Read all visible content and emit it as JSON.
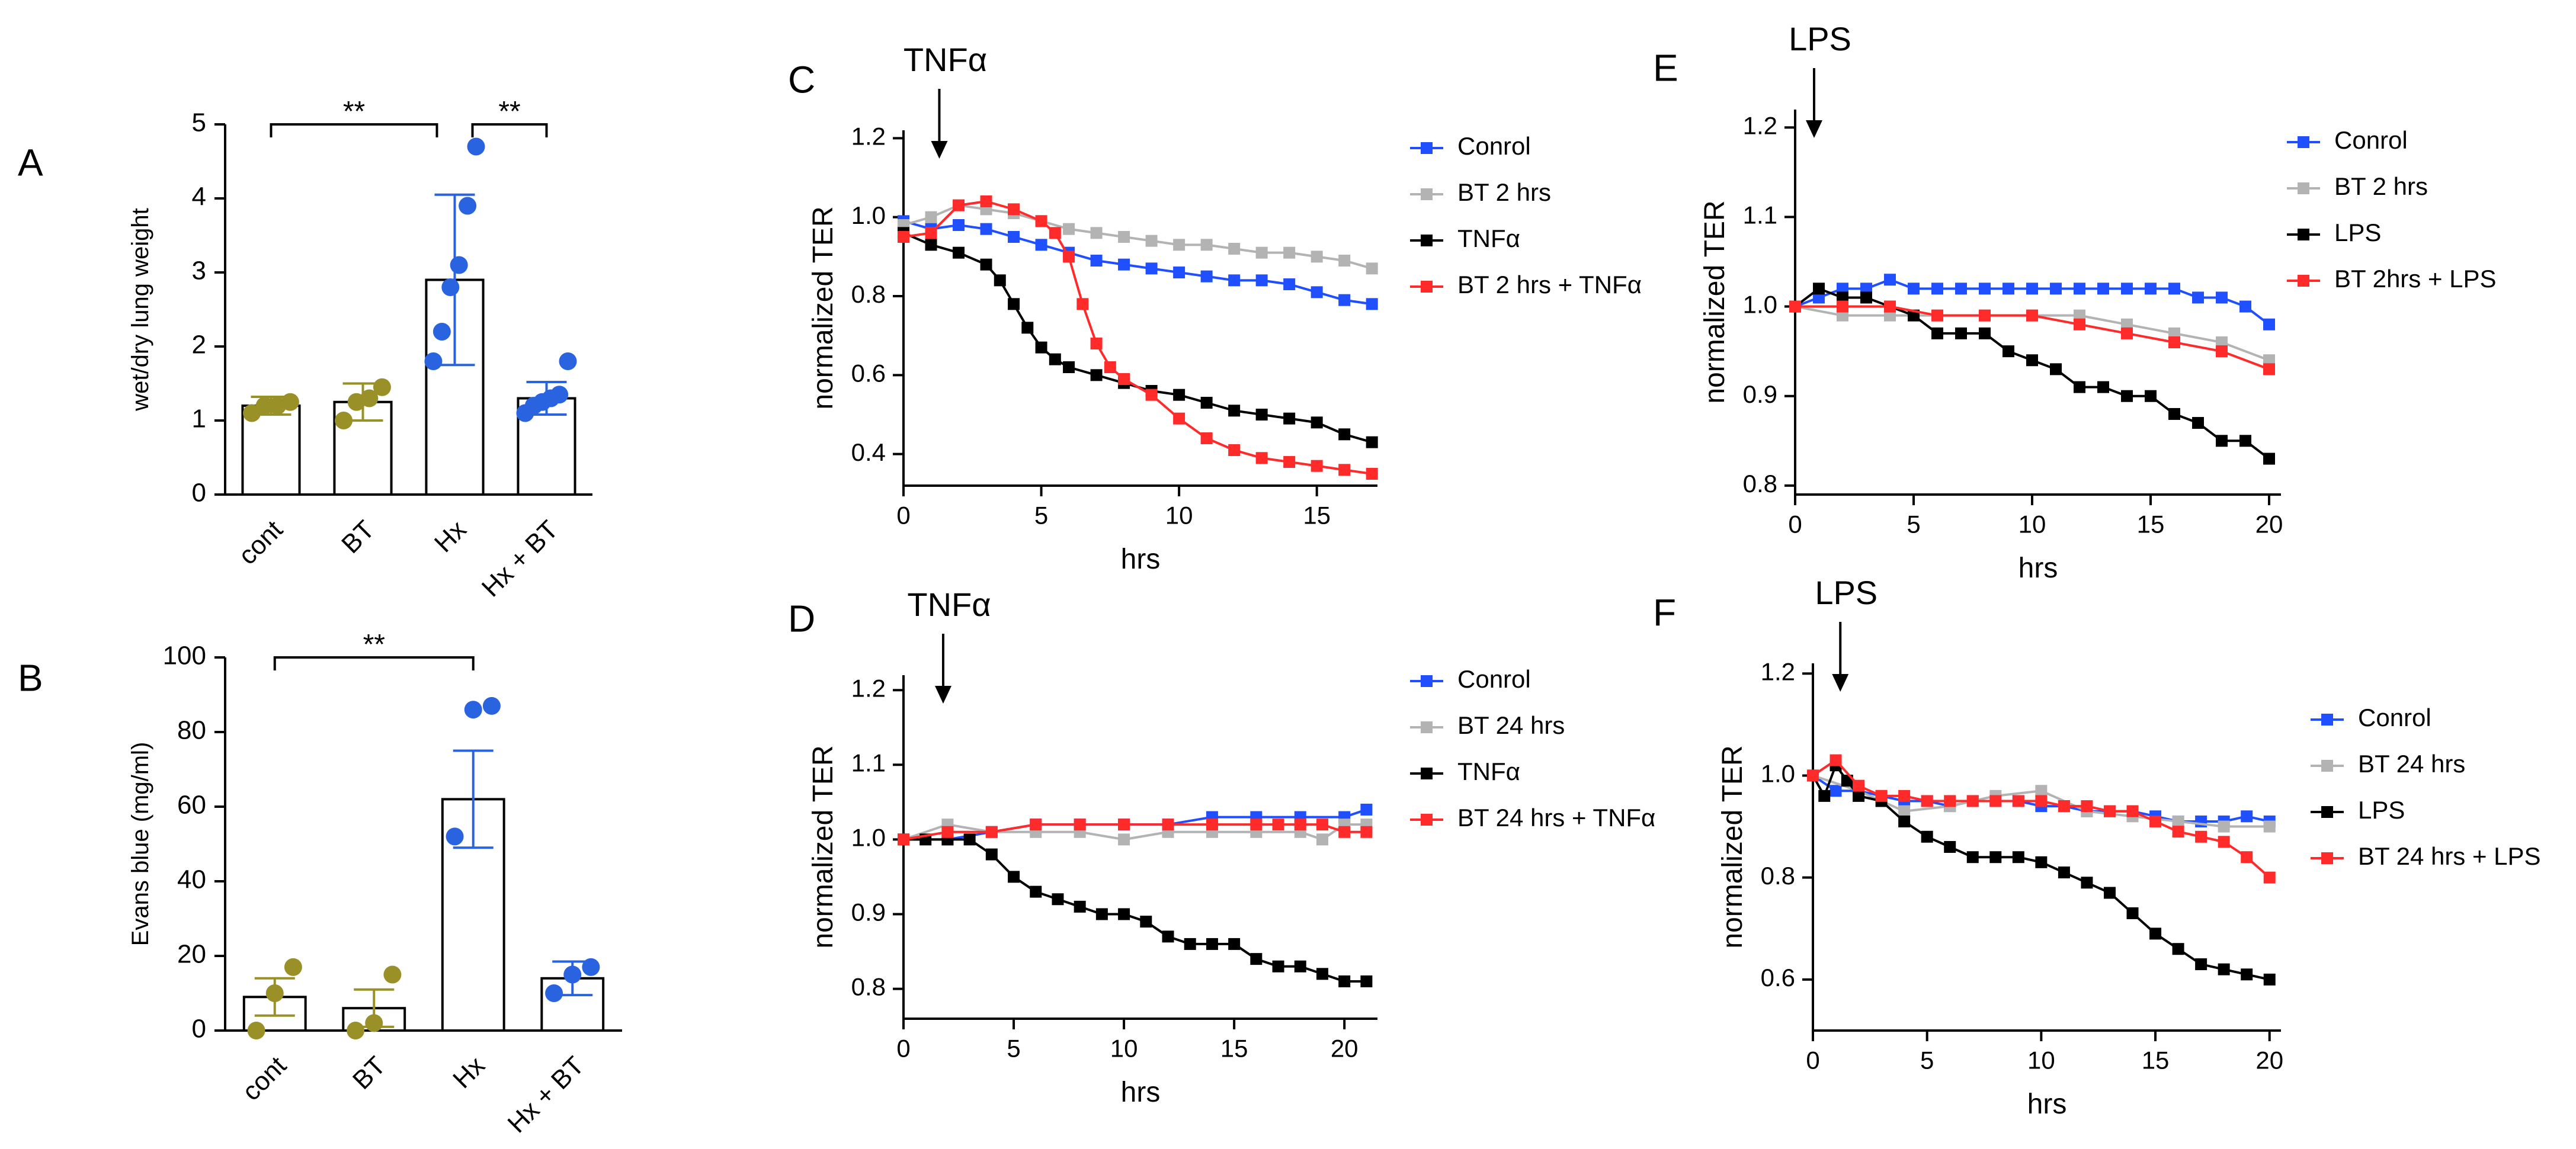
{
  "colors": {
    "control": "#1f4fff",
    "bt": "#b3b3b3",
    "agent": "#000000",
    "combo": "#ff2a2a",
    "olive": "#9a9028",
    "blue": "#2a63e0"
  },
  "chart_data": [
    {
      "panel": "A",
      "type": "bar",
      "ylabel": "wet/dry lung weight",
      "ylim": [
        0,
        5
      ],
      "yticks": [
        0,
        1,
        2,
        3,
        4,
        5
      ],
      "categories": [
        "cont",
        "BT",
        "Hx",
        "Hx + BT"
      ],
      "values": [
        1.2,
        1.25,
        2.9,
        1.3
      ],
      "error": [
        0.12,
        0.25,
        1.15,
        0.22
      ],
      "points": [
        [
          1.1,
          1.2,
          1.2,
          1.25
        ],
        [
          1.0,
          1.25,
          1.3,
          1.45
        ],
        [
          1.8,
          2.2,
          2.8,
          3.1,
          3.9,
          4.7
        ],
        [
          1.1,
          1.2,
          1.25,
          1.3,
          1.35,
          1.8
        ]
      ],
      "point_colors": [
        "olive",
        "olive",
        "blue",
        "blue"
      ],
      "significance": [
        {
          "from": 0,
          "to": 2,
          "label": "**"
        },
        {
          "from": 2,
          "to": 3,
          "label": "**"
        }
      ]
    },
    {
      "panel": "B",
      "type": "bar",
      "ylabel": "Evans blue (mg/ml)",
      "ylim": [
        0,
        100
      ],
      "yticks": [
        0,
        20,
        40,
        60,
        80,
        100
      ],
      "categories": [
        "cont",
        "BT",
        "Hx",
        "Hx + BT"
      ],
      "values": [
        9,
        6,
        62,
        14
      ],
      "error": [
        5,
        5,
        13,
        4.5
      ],
      "points": [
        [
          0,
          10,
          17
        ],
        [
          0,
          2,
          15
        ],
        [
          52,
          86,
          87
        ],
        [
          10,
          15,
          17
        ]
      ],
      "point_colors": [
        "olive",
        "olive",
        "blue",
        "blue"
      ],
      "significance": [
        {
          "from": 0,
          "to": 2,
          "label": "**"
        }
      ]
    },
    {
      "panel": "C",
      "type": "line",
      "arrow_label": "TNFα",
      "arrow_x": 1.3,
      "xlabel": "hrs",
      "ylabel": "normalized TER",
      "xlim": [
        0,
        17.2
      ],
      "ylim": [
        0.32,
        1.22
      ],
      "xticks": [
        0,
        5,
        10,
        15
      ],
      "yticks": [
        0.4,
        0.6,
        0.8,
        1.0,
        1.2
      ],
      "ytick_labels": [
        "0.4",
        "0.6",
        "0.8",
        "1.0",
        "1.2"
      ],
      "series": [
        {
          "name": "Conrol",
          "color_key": "control",
          "x": [
            0,
            1,
            2,
            3,
            4,
            5,
            6,
            7,
            8,
            9,
            10,
            11,
            12,
            13,
            14,
            15,
            16,
            17
          ],
          "y": [
            0.99,
            0.97,
            0.98,
            0.97,
            0.95,
            0.93,
            0.91,
            0.89,
            0.88,
            0.87,
            0.86,
            0.85,
            0.84,
            0.84,
            0.83,
            0.81,
            0.79,
            0.78
          ]
        },
        {
          "name": "BT 2 hrs",
          "color_key": "bt",
          "x": [
            0,
            1,
            2,
            3,
            4,
            5,
            6,
            7,
            8,
            9,
            10,
            11,
            12,
            13,
            14,
            15,
            16,
            17
          ],
          "y": [
            0.98,
            1.0,
            1.03,
            1.02,
            1.01,
            0.99,
            0.97,
            0.96,
            0.95,
            0.94,
            0.93,
            0.93,
            0.92,
            0.91,
            0.91,
            0.9,
            0.89,
            0.87
          ]
        },
        {
          "name": "TNFα",
          "color_key": "agent",
          "x": [
            0,
            1,
            2,
            3,
            3.5,
            4,
            4.5,
            5,
            5.5,
            6,
            7,
            8,
            9,
            10,
            11,
            12,
            13,
            14,
            15,
            16,
            17
          ],
          "y": [
            0.96,
            0.93,
            0.91,
            0.88,
            0.84,
            0.78,
            0.72,
            0.67,
            0.64,
            0.62,
            0.6,
            0.58,
            0.56,
            0.55,
            0.53,
            0.51,
            0.5,
            0.49,
            0.48,
            0.45,
            0.43
          ]
        },
        {
          "name": "BT 2 hrs + TNFα",
          "color_key": "combo",
          "x": [
            0,
            1,
            2,
            3,
            4,
            5,
            5.5,
            6,
            6.5,
            7,
            7.5,
            8,
            9,
            10,
            11,
            12,
            13,
            14,
            15,
            16,
            17
          ],
          "y": [
            0.95,
            0.96,
            1.03,
            1.04,
            1.02,
            0.99,
            0.96,
            0.9,
            0.78,
            0.68,
            0.62,
            0.59,
            0.55,
            0.49,
            0.44,
            0.41,
            0.39,
            0.38,
            0.37,
            0.36,
            0.35
          ]
        }
      ]
    },
    {
      "panel": "D",
      "type": "line",
      "arrow_label": "TNFα",
      "arrow_x": 1.8,
      "xlabel": "hrs",
      "ylabel": "normalized TER",
      "xlim": [
        0,
        21.5
      ],
      "ylim": [
        0.76,
        1.22
      ],
      "xticks": [
        0,
        5,
        10,
        15,
        20
      ],
      "yticks": [
        0.8,
        0.9,
        1.0,
        1.1,
        1.2
      ],
      "ytick_labels": [
        "0.8",
        "0.9",
        "1.0",
        "1.1",
        "1.2"
      ],
      "series": [
        {
          "name": "Conrol",
          "color_key": "control",
          "x": [
            0,
            2,
            4,
            6,
            8,
            10,
            12,
            14,
            16,
            18,
            20,
            21
          ],
          "y": [
            1.0,
            1.0,
            1.01,
            1.02,
            1.02,
            1.02,
            1.02,
            1.03,
            1.03,
            1.03,
            1.03,
            1.04
          ]
        },
        {
          "name": "BT 24 hrs",
          "color_key": "bt",
          "x": [
            0,
            2,
            4,
            6,
            8,
            10,
            12,
            14,
            16,
            18,
            19,
            20,
            21
          ],
          "y": [
            1.0,
            1.02,
            1.01,
            1.01,
            1.01,
            1.0,
            1.01,
            1.01,
            1.01,
            1.01,
            1.0,
            1.02,
            1.02
          ]
        },
        {
          "name": "TNFα",
          "color_key": "agent",
          "x": [
            0,
            1,
            2,
            3,
            4,
            5,
            6,
            7,
            8,
            9,
            10,
            11,
            12,
            13,
            14,
            15,
            16,
            17,
            18,
            19,
            20,
            21
          ],
          "y": [
            1.0,
            1.0,
            1.0,
            1.0,
            0.98,
            0.95,
            0.93,
            0.92,
            0.91,
            0.9,
            0.9,
            0.89,
            0.87,
            0.86,
            0.86,
            0.86,
            0.84,
            0.83,
            0.83,
            0.82,
            0.81,
            0.81
          ]
        },
        {
          "name": "BT 24 hrs + TNFα",
          "color_key": "combo",
          "x": [
            0,
            2,
            4,
            6,
            8,
            10,
            12,
            14,
            16,
            17,
            18,
            19,
            20,
            21
          ],
          "y": [
            1.0,
            1.01,
            1.01,
            1.02,
            1.02,
            1.02,
            1.02,
            1.02,
            1.02,
            1.02,
            1.02,
            1.02,
            1.01,
            1.01
          ]
        }
      ]
    },
    {
      "panel": "E",
      "type": "line",
      "arrow_label": "LPS",
      "arrow_x": 0.8,
      "xlabel": "hrs",
      "ylabel": "normalized TER",
      "xlim": [
        0,
        20.5
      ],
      "ylim": [
        0.79,
        1.22
      ],
      "xticks": [
        0,
        5,
        10,
        15,
        20
      ],
      "yticks": [
        0.8,
        0.9,
        1.0,
        1.1,
        1.2
      ],
      "ytick_labels": [
        "0.8",
        "0.9",
        "1.0",
        "1.1",
        "1.2"
      ],
      "series": [
        {
          "name": "Conrol",
          "color_key": "control",
          "x": [
            0,
            1,
            2,
            3,
            4,
            5,
            6,
            7,
            8,
            9,
            10,
            11,
            12,
            13,
            14,
            15,
            16,
            17,
            18,
            19,
            20
          ],
          "y": [
            1.0,
            1.01,
            1.02,
            1.02,
            1.03,
            1.02,
            1.02,
            1.02,
            1.02,
            1.02,
            1.02,
            1.02,
            1.02,
            1.02,
            1.02,
            1.02,
            1.02,
            1.01,
            1.01,
            1.0,
            0.98
          ]
        },
        {
          "name": "BT 2 hrs",
          "color_key": "bt",
          "x": [
            0,
            2,
            4,
            6,
            8,
            10,
            12,
            14,
            16,
            18,
            20
          ],
          "y": [
            1.0,
            0.99,
            0.99,
            0.99,
            0.99,
            0.99,
            0.99,
            0.98,
            0.97,
            0.96,
            0.94
          ]
        },
        {
          "name": "LPS",
          "color_key": "agent",
          "x": [
            0,
            1,
            2,
            3,
            4,
            5,
            6,
            7,
            8,
            9,
            10,
            11,
            12,
            13,
            14,
            15,
            16,
            17,
            18,
            19,
            20
          ],
          "y": [
            1.0,
            1.02,
            1.01,
            1.01,
            1.0,
            0.99,
            0.97,
            0.97,
            0.97,
            0.95,
            0.94,
            0.93,
            0.91,
            0.91,
            0.9,
            0.9,
            0.88,
            0.87,
            0.85,
            0.85,
            0.83
          ]
        },
        {
          "name": "BT 2hrs + LPS",
          "color_key": "combo",
          "x": [
            0,
            2,
            4,
            6,
            8,
            10,
            12,
            14,
            16,
            18,
            20
          ],
          "y": [
            1.0,
            1.0,
            1.0,
            0.99,
            0.99,
            0.99,
            0.98,
            0.97,
            0.96,
            0.95,
            0.93
          ]
        }
      ]
    },
    {
      "panel": "F",
      "type": "line",
      "arrow_label": "LPS",
      "arrow_x": 1.2,
      "xlabel": "hrs",
      "ylabel": "normalized TER",
      "xlim": [
        0,
        20.5
      ],
      "ylim": [
        0.5,
        1.22
      ],
      "xticks": [
        0,
        5,
        10,
        15,
        20
      ],
      "yticks": [
        0.6,
        0.8,
        1.0,
        1.2
      ],
      "ytick_labels": [
        "0.6",
        "0.8",
        "1.0",
        "1.2"
      ],
      "series": [
        {
          "name": "Conrol",
          "color_key": "control",
          "x": [
            0,
            1,
            2,
            3,
            4,
            5,
            6,
            7,
            8,
            9,
            10,
            11,
            12,
            13,
            14,
            15,
            16,
            17,
            18,
            19,
            20
          ],
          "y": [
            1.0,
            0.97,
            0.97,
            0.96,
            0.95,
            0.95,
            0.94,
            0.95,
            0.95,
            0.95,
            0.94,
            0.94,
            0.93,
            0.93,
            0.93,
            0.92,
            0.91,
            0.91,
            0.91,
            0.92,
            0.91
          ]
        },
        {
          "name": "BT 24 hrs",
          "color_key": "bt",
          "x": [
            0,
            2,
            4,
            6,
            8,
            10,
            12,
            14,
            16,
            18,
            20
          ],
          "y": [
            1.0,
            0.97,
            0.93,
            0.94,
            0.96,
            0.97,
            0.93,
            0.92,
            0.91,
            0.9,
            0.9
          ]
        },
        {
          "name": "LPS",
          "color_key": "agent",
          "x": [
            0,
            0.5,
            1,
            1.5,
            2,
            3,
            4,
            5,
            6,
            7,
            8,
            9,
            10,
            11,
            12,
            13,
            14,
            15,
            16,
            17,
            18,
            19,
            20
          ],
          "y": [
            1.0,
            0.96,
            1.02,
            0.99,
            0.96,
            0.95,
            0.91,
            0.88,
            0.86,
            0.84,
            0.84,
            0.84,
            0.83,
            0.81,
            0.79,
            0.77,
            0.73,
            0.69,
            0.66,
            0.63,
            0.62,
            0.61,
            0.6
          ]
        },
        {
          "name": "BT 24 hrs + LPS",
          "color_key": "combo",
          "x": [
            0,
            1,
            2,
            3,
            4,
            5,
            6,
            7,
            8,
            9,
            10,
            11,
            12,
            13,
            14,
            15,
            16,
            17,
            18,
            19,
            20
          ],
          "y": [
            1.0,
            1.03,
            0.98,
            0.96,
            0.96,
            0.95,
            0.95,
            0.95,
            0.95,
            0.95,
            0.95,
            0.94,
            0.94,
            0.93,
            0.93,
            0.91,
            0.89,
            0.88,
            0.87,
            0.84,
            0.8
          ]
        }
      ]
    }
  ]
}
